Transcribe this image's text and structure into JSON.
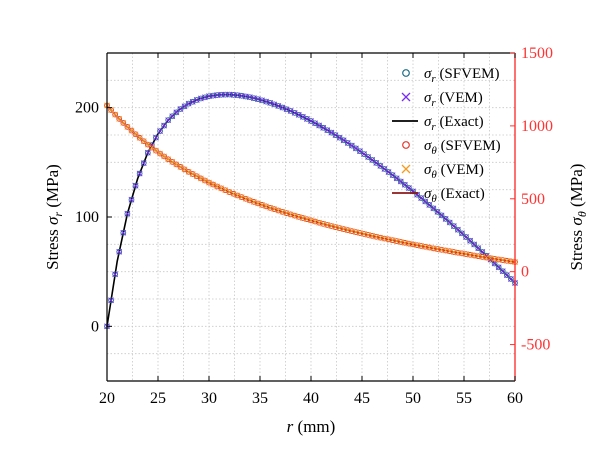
{
  "chart_data": {
    "type": "line",
    "title": "",
    "x_label_italic": "r",
    "x_label_rest": "(mm)",
    "x_range": [
      20,
      60
    ],
    "x_ticks": [
      20,
      25,
      30,
      35,
      40,
      45,
      50,
      55,
      60
    ],
    "left_axis": {
      "label_prefix": "Stress ",
      "label_symbol": "σ",
      "label_sub": "r",
      "label_suffix": " (MPa)",
      "range": [
        -50,
        250
      ],
      "ticks": [
        0,
        100,
        200
      ],
      "color": "#000000"
    },
    "right_axis": {
      "label_prefix": "Stress ",
      "label_symbol": "σ",
      "label_sub": "θ",
      "label_suffix": " (MPa)",
      "range": [
        -750,
        1500
      ],
      "ticks": [
        -500,
        0,
        500,
        1000,
        1500
      ],
      "color": "#ff3333"
    },
    "grid": true,
    "legend_position": "top-right",
    "legend": [
      {
        "sym": "σ",
        "sub": "r",
        "method": "(SFVEM)",
        "marker": "circle",
        "color": "#1f6f8b"
      },
      {
        "sym": "σ",
        "sub": "r",
        "method": "(VEM)",
        "marker": "x",
        "color": "#7b2cf5"
      },
      {
        "sym": "σ",
        "sub": "r",
        "method": "(Exact)",
        "marker": "line",
        "color": "#000000"
      },
      {
        "sym": "σ",
        "sub": "θ",
        "method": "(SFVEM)",
        "marker": "circle",
        "color": "#e8392e"
      },
      {
        "sym": "σ",
        "sub": "θ",
        "method": "(VEM)",
        "marker": "x",
        "color": "#f39c1f"
      },
      {
        "sym": "σ",
        "sub": "θ",
        "method": "(Exact)",
        "marker": "line",
        "color": "#8b1a1a"
      }
    ],
    "series": [
      {
        "name": "σr",
        "axis": "left",
        "x": [
          20,
          21,
          22,
          23,
          24,
          25,
          26,
          27,
          28,
          29,
          30,
          31,
          32,
          33,
          34,
          35,
          36,
          37,
          38,
          39,
          40,
          41,
          42,
          43,
          44,
          45,
          46,
          47,
          48,
          49,
          50,
          51,
          52,
          53,
          54,
          55,
          56,
          57,
          58,
          59,
          60
        ],
        "y": [
          0,
          59.5,
          103.0,
          135.0,
          158.8,
          176.1,
          188.6,
          197.5,
          203.7,
          207.9,
          210.5,
          211.8,
          212.0,
          211.2,
          209.6,
          207.3,
          204.4,
          200.9,
          197.0,
          192.6,
          187.8,
          182.7,
          177.2,
          171.4,
          165.3,
          158.9,
          152.2,
          145.4,
          138.3,
          131.0,
          123.5,
          115.8,
          107.9,
          99.9,
          91.7,
          83.4,
          74.9,
          66.3,
          57.5,
          48.7,
          39.7
        ],
        "exact_color": "#000000",
        "sfvem_color": "#1f6f8b",
        "vem_color": "#7b2cf5"
      },
      {
        "name": "σθ",
        "axis": "right",
        "x": [
          20,
          21,
          22,
          23,
          24,
          25,
          26,
          27,
          28,
          29,
          30,
          31,
          32,
          33,
          34,
          35,
          36,
          37,
          38,
          39,
          40,
          41,
          42,
          43,
          44,
          45,
          46,
          47,
          48,
          49,
          50,
          51,
          52,
          53,
          54,
          55,
          56,
          57,
          58,
          59,
          60
        ],
        "y": [
          1140,
          1062,
          993,
          930,
          872,
          820,
          771,
          727,
          685,
          647,
          611,
          578,
          546,
          517,
          489,
          463,
          438,
          415,
          393,
          372,
          352,
          332,
          313,
          295,
          278,
          262,
          246,
          230,
          216,
          201,
          187,
          174,
          160,
          148,
          135,
          123,
          111,
          99,
          88,
          77,
          66
        ],
        "exact_color": "#8b1a1a",
        "sfvem_color": "#e8392e",
        "vem_color": "#f39c1f"
      }
    ]
  }
}
